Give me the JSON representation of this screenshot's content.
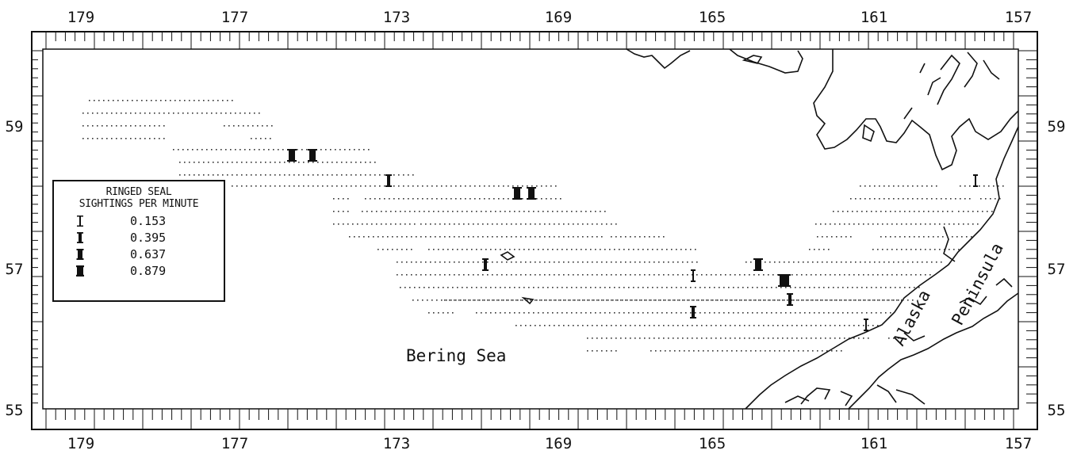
{
  "map": {
    "region_label": "Bering Sea",
    "peninsula_label_1": "Alaska",
    "peninsula_label_2": "Peninsula",
    "lon_labels": [
      "179",
      "177",
      "173",
      "169",
      "165",
      "161",
      "157"
    ],
    "lat_labels": [
      "59",
      "57",
      "55"
    ],
    "extent": {
      "lon_west": 180,
      "lon_east": 157,
      "lat_south": 55,
      "lat_north": 60
    }
  },
  "legend": {
    "title_line1": "RINGED SEAL",
    "title_line2": "SIGHTINGS PER MINUTE",
    "entries": [
      {
        "value": "0.153",
        "symbol": "bar-thin-icon"
      },
      {
        "value": "0.395",
        "symbol": "bar-medium-icon"
      },
      {
        "value": "0.637",
        "symbol": "bar-thick-icon"
      },
      {
        "value": "0.879",
        "symbol": "bar-thickest-icon"
      }
    ]
  },
  "colors": {
    "ink": "#111111",
    "background": "#ffffff"
  }
}
